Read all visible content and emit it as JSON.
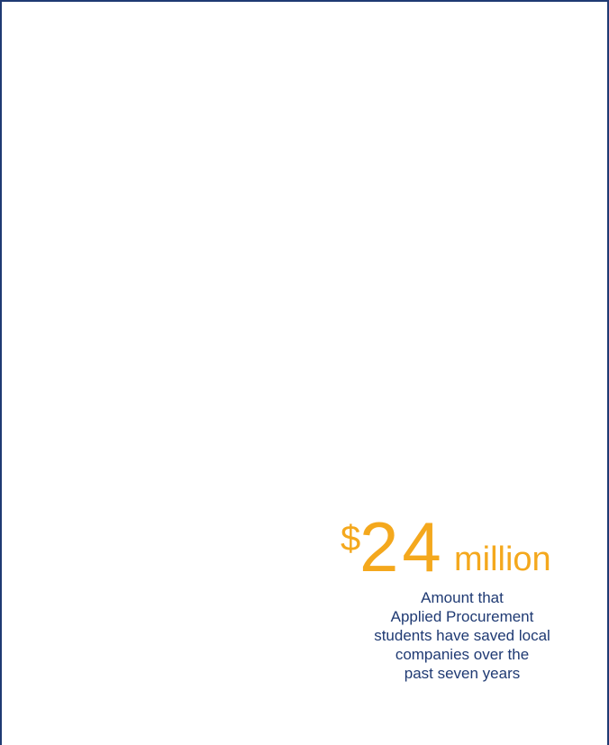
{
  "stat": {
    "currency": "$",
    "amount": "24",
    "unit": "million",
    "caption_lines": [
      "Amount that",
      "Applied Procurement",
      "students have saved local",
      "companies over the",
      "past seven years"
    ]
  },
  "colors": {
    "accent": "#f4a81d",
    "text": "#1f3a73",
    "border": "#1f3a73",
    "background": "#ffffff"
  }
}
